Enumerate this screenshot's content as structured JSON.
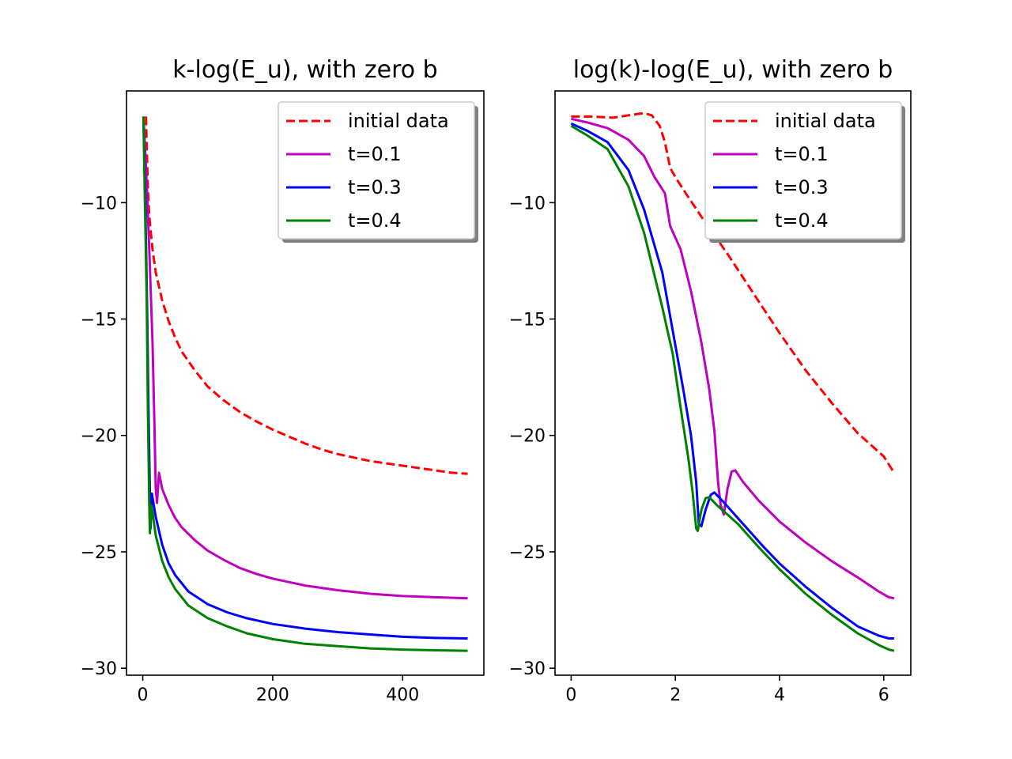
{
  "chart_data": [
    {
      "type": "line",
      "title": "k-log(E_u), with zero b",
      "xlabel": "",
      "ylabel": "",
      "xlim": [
        -25,
        525
      ],
      "ylim": [
        -30.3,
        -5.2
      ],
      "xticks": [
        0,
        200,
        400
      ],
      "yticks": [
        -10,
        -15,
        -20,
        -25,
        -30
      ],
      "grid": false,
      "legend": "top-right",
      "series": [
        {
          "name": "initial data",
          "color": "#ff0000",
          "dash": true,
          "points": [
            [
              5,
              -6.3
            ],
            [
              6,
              -7.6
            ],
            [
              8,
              -9.4
            ],
            [
              10,
              -10.6
            ],
            [
              15,
              -12.0
            ],
            [
              20,
              -13.0
            ],
            [
              30,
              -14.2
            ],
            [
              40,
              -15.1
            ],
            [
              50,
              -15.8
            ],
            [
              60,
              -16.4
            ],
            [
              80,
              -17.2
            ],
            [
              100,
              -17.9
            ],
            [
              125,
              -18.5
            ],
            [
              150,
              -19.0
            ],
            [
              175,
              -19.4
            ],
            [
              200,
              -19.75
            ],
            [
              225,
              -20.05
            ],
            [
              250,
              -20.35
            ],
            [
              275,
              -20.6
            ],
            [
              300,
              -20.8
            ],
            [
              325,
              -20.95
            ],
            [
              350,
              -21.1
            ],
            [
              375,
              -21.2
            ],
            [
              400,
              -21.3
            ],
            [
              425,
              -21.4
            ],
            [
              450,
              -21.5
            ],
            [
              475,
              -21.6
            ],
            [
              500,
              -21.65
            ]
          ]
        },
        {
          "name": "t=0.1",
          "color": "#bf00bf",
          "dash": false,
          "points": [
            [
              1,
              -6.3
            ],
            [
              5,
              -8.5
            ],
            [
              10,
              -12.0
            ],
            [
              15,
              -16.0
            ],
            [
              18,
              -19.5
            ],
            [
              20,
              -22.3
            ],
            [
              22,
              -22.9
            ],
            [
              25,
              -21.6
            ],
            [
              30,
              -22.3
            ],
            [
              40,
              -23.0
            ],
            [
              50,
              -23.55
            ],
            [
              60,
              -23.95
            ],
            [
              80,
              -24.5
            ],
            [
              100,
              -24.95
            ],
            [
              125,
              -25.35
            ],
            [
              150,
              -25.7
            ],
            [
              175,
              -25.95
            ],
            [
              200,
              -26.15
            ],
            [
              250,
              -26.45
            ],
            [
              300,
              -26.65
            ],
            [
              350,
              -26.8
            ],
            [
              400,
              -26.9
            ],
            [
              450,
              -26.95
            ],
            [
              500,
              -27.0
            ]
          ]
        },
        {
          "name": "t=0.3",
          "color": "#0000ff",
          "dash": false,
          "points": [
            [
              1,
              -6.3
            ],
            [
              4,
              -10.0
            ],
            [
              7,
              -15.0
            ],
            [
              9,
              -19.0
            ],
            [
              11,
              -22.5
            ],
            [
              12,
              -24.0
            ],
            [
              14,
              -22.5
            ],
            [
              17,
              -23.0
            ],
            [
              20,
              -23.5
            ],
            [
              30,
              -24.7
            ],
            [
              40,
              -25.5
            ],
            [
              50,
              -26.0
            ],
            [
              70,
              -26.7
            ],
            [
              100,
              -27.25
            ],
            [
              130,
              -27.6
            ],
            [
              160,
              -27.85
            ],
            [
              200,
              -28.1
            ],
            [
              250,
              -28.3
            ],
            [
              300,
              -28.45
            ],
            [
              350,
              -28.55
            ],
            [
              400,
              -28.65
            ],
            [
              450,
              -28.7
            ],
            [
              500,
              -28.72
            ]
          ]
        },
        {
          "name": "t=0.4",
          "color": "#008000",
          "dash": false,
          "points": [
            [
              1,
              -6.3
            ],
            [
              3,
              -9.5
            ],
            [
              6,
              -14.0
            ],
            [
              8,
              -19.0
            ],
            [
              10,
              -23.0
            ],
            [
              11,
              -24.2
            ],
            [
              13,
              -23.0
            ],
            [
              15,
              -23.3
            ],
            [
              20,
              -24.3
            ],
            [
              30,
              -25.4
            ],
            [
              40,
              -26.1
            ],
            [
              50,
              -26.6
            ],
            [
              70,
              -27.3
            ],
            [
              100,
              -27.85
            ],
            [
              130,
              -28.2
            ],
            [
              160,
              -28.5
            ],
            [
              200,
              -28.75
            ],
            [
              250,
              -28.95
            ],
            [
              300,
              -29.05
            ],
            [
              350,
              -29.15
            ],
            [
              400,
              -29.2
            ],
            [
              450,
              -29.23
            ],
            [
              500,
              -29.25
            ]
          ]
        }
      ]
    },
    {
      "type": "line",
      "title": "log(k)-log(E_u), with zero b",
      "xlabel": "",
      "ylabel": "",
      "xlim": [
        -0.31,
        6.52
      ],
      "ylim": [
        -30.3,
        -5.2
      ],
      "xticks": [
        0,
        2,
        4,
        6
      ],
      "yticks": [
        -10,
        -15,
        -20,
        -25,
        -30
      ],
      "grid": false,
      "legend": "top-right",
      "series": [
        {
          "name": "initial data",
          "color": "#ff0000",
          "dash": true,
          "points": [
            [
              0,
              -6.3
            ],
            [
              0.4,
              -6.3
            ],
            [
              0.8,
              -6.35
            ],
            [
              1.1,
              -6.25
            ],
            [
              1.4,
              -6.15
            ],
            [
              1.55,
              -6.25
            ],
            [
              1.7,
              -6.7
            ],
            [
              1.8,
              -7.4
            ],
            [
              1.9,
              -8.5
            ],
            [
              2.0,
              -8.9
            ],
            [
              2.2,
              -9.6
            ],
            [
              2.5,
              -10.6
            ],
            [
              3.0,
              -12.2
            ],
            [
              3.5,
              -13.9
            ],
            [
              4.0,
              -15.6
            ],
            [
              4.5,
              -17.2
            ],
            [
              5.0,
              -18.6
            ],
            [
              5.5,
              -19.9
            ],
            [
              6.0,
              -20.9
            ],
            [
              6.2,
              -21.6
            ]
          ]
        },
        {
          "name": "t=0.1",
          "color": "#bf00bf",
          "dash": false,
          "points": [
            [
              0,
              -6.4
            ],
            [
              0.3,
              -6.55
            ],
            [
              0.7,
              -6.8
            ],
            [
              1.1,
              -7.3
            ],
            [
              1.4,
              -8.0
            ],
            [
              1.6,
              -8.9
            ],
            [
              1.8,
              -9.6
            ],
            [
              1.9,
              -11.0
            ],
            [
              2.1,
              -12.0
            ],
            [
              2.3,
              -13.8
            ],
            [
              2.5,
              -16.0
            ],
            [
              2.65,
              -18.0
            ],
            [
              2.75,
              -19.8
            ],
            [
              2.82,
              -22.0
            ],
            [
              2.87,
              -23.0
            ],
            [
              2.93,
              -23.4
            ],
            [
              3.0,
              -22.3
            ],
            [
              3.08,
              -21.55
            ],
            [
              3.15,
              -21.5
            ],
            [
              3.3,
              -22.0
            ],
            [
              3.6,
              -22.8
            ],
            [
              4.0,
              -23.7
            ],
            [
              4.5,
              -24.6
            ],
            [
              5.0,
              -25.4
            ],
            [
              5.5,
              -26.1
            ],
            [
              5.9,
              -26.7
            ],
            [
              6.1,
              -26.95
            ],
            [
              6.2,
              -27.0
            ]
          ]
        },
        {
          "name": "t=0.3",
          "color": "#0000ff",
          "dash": false,
          "points": [
            [
              0,
              -6.6
            ],
            [
              0.3,
              -6.9
            ],
            [
              0.7,
              -7.4
            ],
            [
              1.1,
              -8.6
            ],
            [
              1.4,
              -10.3
            ],
            [
              1.75,
              -13.0
            ],
            [
              1.95,
              -15.5
            ],
            [
              2.15,
              -18.0
            ],
            [
              2.3,
              -20.0
            ],
            [
              2.4,
              -22.0
            ],
            [
              2.45,
              -23.8
            ],
            [
              2.5,
              -23.9
            ],
            [
              2.58,
              -23.2
            ],
            [
              2.68,
              -22.55
            ],
            [
              2.75,
              -22.45
            ],
            [
              2.9,
              -22.8
            ],
            [
              3.3,
              -23.8
            ],
            [
              3.7,
              -24.8
            ],
            [
              4.0,
              -25.5
            ],
            [
              4.5,
              -26.5
            ],
            [
              5.0,
              -27.4
            ],
            [
              5.5,
              -28.2
            ],
            [
              5.9,
              -28.6
            ],
            [
              6.1,
              -28.72
            ],
            [
              6.2,
              -28.72
            ]
          ]
        },
        {
          "name": "t=0.4",
          "color": "#008000",
          "dash": false,
          "points": [
            [
              0,
              -6.7
            ],
            [
              0.3,
              -7.1
            ],
            [
              0.7,
              -7.7
            ],
            [
              1.1,
              -9.3
            ],
            [
              1.4,
              -11.3
            ],
            [
              1.75,
              -14.5
            ],
            [
              1.95,
              -16.5
            ],
            [
              2.1,
              -18.8
            ],
            [
              2.25,
              -21.0
            ],
            [
              2.33,
              -22.4
            ],
            [
              2.4,
              -24.0
            ],
            [
              2.43,
              -24.1
            ],
            [
              2.5,
              -23.2
            ],
            [
              2.58,
              -22.7
            ],
            [
              2.65,
              -22.65
            ],
            [
              2.8,
              -23.0
            ],
            [
              3.2,
              -23.8
            ],
            [
              3.6,
              -24.8
            ],
            [
              4.0,
              -25.75
            ],
            [
              4.5,
              -26.8
            ],
            [
              5.0,
              -27.7
            ],
            [
              5.5,
              -28.5
            ],
            [
              5.9,
              -29.0
            ],
            [
              6.1,
              -29.2
            ],
            [
              6.2,
              -29.25
            ]
          ]
        }
      ]
    }
  ]
}
